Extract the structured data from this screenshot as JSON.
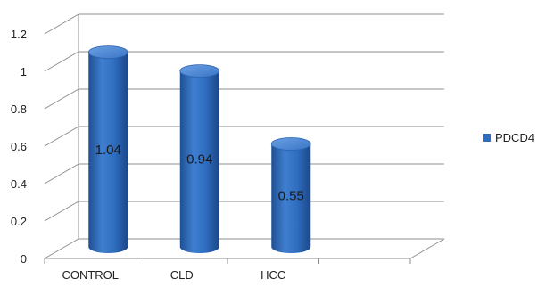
{
  "chart_data": {
    "type": "bar",
    "style": "3d-cylinder",
    "categories": [
      "CONTROL",
      "CLD",
      "HCC"
    ],
    "series": [
      {
        "name": "PDCD4",
        "values": [
          1.04,
          0.94,
          0.55
        ],
        "data_labels": [
          "1.04",
          "0.94",
          "0.55"
        ]
      }
    ],
    "ylim": [
      0,
      1.2
    ],
    "yticks": [
      0,
      0.2,
      0.4,
      0.6,
      0.8,
      1,
      1.2
    ],
    "ytick_labels": [
      "0",
      "0.2",
      "0.4",
      "0.6",
      "0.8",
      "1",
      "1.2"
    ],
    "grid": true,
    "legend_position": "right",
    "colors": {
      "bar": "#2f6dbf",
      "bar_dark": "#1f4f94",
      "bar_light": "#5b92dc",
      "grid": "#8c8c8c"
    },
    "title": "",
    "xlabel": "",
    "ylabel": ""
  }
}
